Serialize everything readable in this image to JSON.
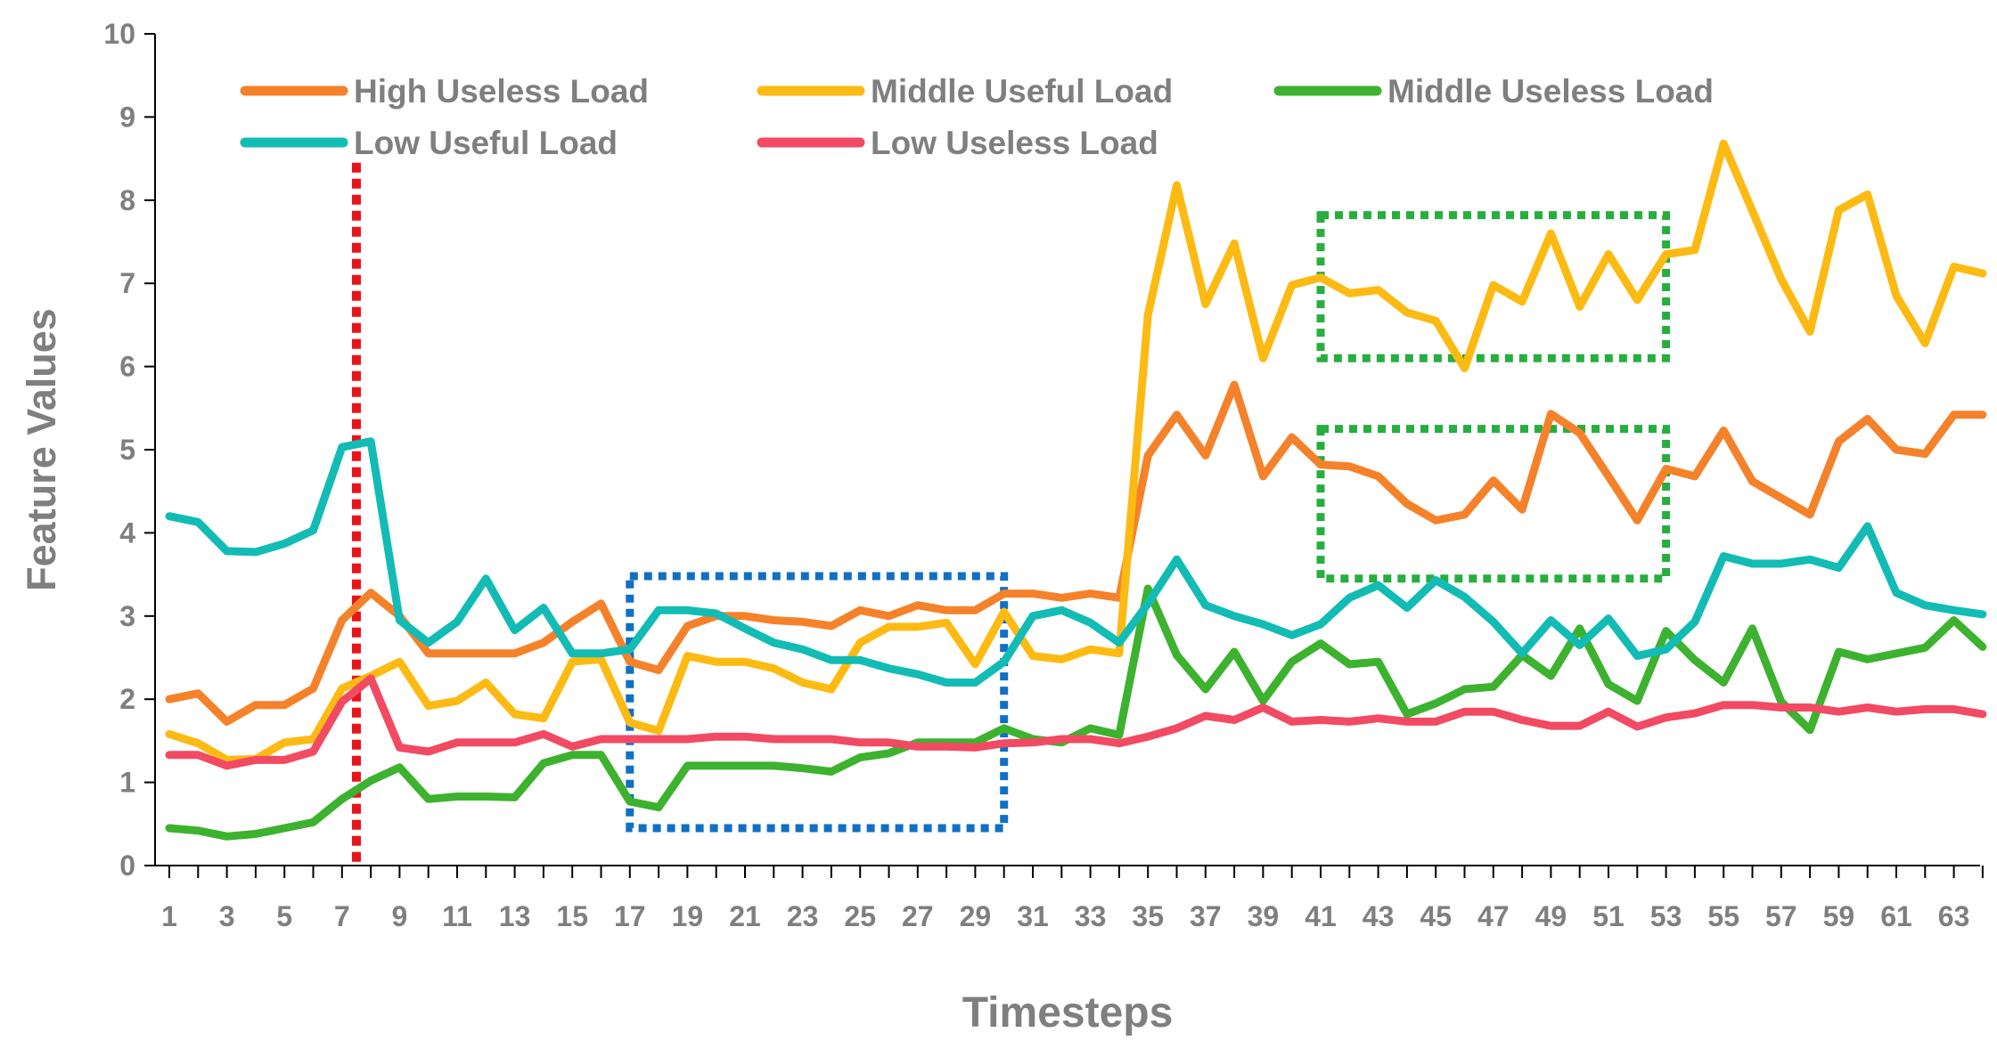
{
  "chart_data": {
    "type": "line",
    "title": "",
    "xlabel": "Timesteps",
    "ylabel": "Feature Values",
    "ylim": [
      0,
      10
    ],
    "yticks": [
      "0",
      "1",
      "2",
      "3",
      "4",
      "5",
      "6",
      "7",
      "8",
      "9",
      "10"
    ],
    "x": [
      1,
      2,
      3,
      4,
      5,
      6,
      7,
      8,
      9,
      10,
      11,
      12,
      13,
      14,
      15,
      16,
      17,
      18,
      19,
      20,
      21,
      22,
      23,
      24,
      25,
      26,
      27,
      28,
      29,
      30,
      31,
      32,
      33,
      34,
      35,
      36,
      37,
      38,
      39,
      40,
      41,
      42,
      43,
      44,
      45,
      46,
      47,
      48,
      49,
      50,
      51,
      52,
      53,
      54,
      55,
      56,
      57,
      58,
      59,
      60,
      61,
      62,
      63,
      64
    ],
    "xtick_labels": [
      "1",
      "3",
      "5",
      "7",
      "9",
      "11",
      "13",
      "15",
      "17",
      "19",
      "21",
      "23",
      "25",
      "27",
      "29",
      "31",
      "33",
      "35",
      "37",
      "39",
      "41",
      "43",
      "45",
      "47",
      "49",
      "51",
      "53",
      "55",
      "57",
      "59",
      "61",
      "63"
    ],
    "series": [
      {
        "name": "High Useless Load",
        "color": "#F5822A",
        "values": [
          2.0,
          2.07,
          1.73,
          1.93,
          1.93,
          2.13,
          2.95,
          3.28,
          3.0,
          2.55,
          2.55,
          2.55,
          2.55,
          2.68,
          2.93,
          3.15,
          2.45,
          2.35,
          2.88,
          3.0,
          3.0,
          2.95,
          2.93,
          2.88,
          3.07,
          3.0,
          3.13,
          3.07,
          3.07,
          3.27,
          3.27,
          3.22,
          3.27,
          3.22,
          4.93,
          5.42,
          4.93,
          5.78,
          4.68,
          5.15,
          4.82,
          4.8,
          4.68,
          4.35,
          4.15,
          4.22,
          4.63,
          4.28,
          5.43,
          5.2,
          4.68,
          4.15,
          4.77,
          4.68,
          5.23,
          4.62,
          4.42,
          4.22,
          5.1,
          5.37,
          5.0,
          4.95,
          5.42,
          5.42
        ]
      },
      {
        "name": "Middle Useful Load",
        "color": "#FDBA13",
        "values": [
          1.58,
          1.47,
          1.27,
          1.28,
          1.48,
          1.52,
          2.13,
          2.28,
          2.45,
          1.92,
          1.98,
          2.2,
          1.82,
          1.77,
          2.45,
          2.48,
          1.72,
          1.62,
          2.52,
          2.45,
          2.45,
          2.37,
          2.2,
          2.12,
          2.68,
          2.87,
          2.87,
          2.92,
          2.42,
          3.05,
          2.52,
          2.48,
          2.6,
          2.55,
          6.62,
          8.18,
          6.75,
          7.48,
          6.1,
          6.98,
          7.07,
          6.88,
          6.92,
          6.65,
          6.55,
          5.98,
          6.98,
          6.78,
          7.6,
          6.72,
          7.35,
          6.8,
          7.35,
          7.4,
          8.68,
          7.87,
          7.05,
          6.42,
          7.88,
          8.07,
          6.85,
          6.28,
          7.2,
          7.12
        ]
      },
      {
        "name": "Middle Useless Load",
        "color": "#3DB22F",
        "values": [
          0.45,
          0.42,
          0.35,
          0.38,
          0.45,
          0.52,
          0.8,
          1.02,
          1.18,
          0.8,
          0.83,
          0.83,
          0.82,
          1.23,
          1.33,
          1.33,
          0.77,
          0.7,
          1.2,
          1.2,
          1.2,
          1.2,
          1.17,
          1.13,
          1.3,
          1.35,
          1.48,
          1.48,
          1.48,
          1.65,
          1.52,
          1.48,
          1.65,
          1.57,
          3.33,
          2.53,
          2.12,
          2.57,
          1.98,
          2.45,
          2.67,
          2.42,
          2.45,
          1.82,
          1.95,
          2.12,
          2.15,
          2.53,
          2.28,
          2.85,
          2.18,
          1.98,
          2.82,
          2.47,
          2.2,
          2.85,
          1.97,
          1.63,
          2.57,
          2.48,
          2.55,
          2.62,
          2.95,
          2.63
        ]
      },
      {
        "name": "Low Useful Load",
        "color": "#12BCB4",
        "values": [
          4.2,
          4.13,
          3.78,
          3.77,
          3.87,
          4.03,
          5.03,
          5.1,
          2.95,
          2.68,
          2.93,
          3.45,
          2.83,
          3.1,
          2.55,
          2.55,
          2.6,
          3.07,
          3.07,
          3.03,
          2.85,
          2.68,
          2.6,
          2.47,
          2.47,
          2.37,
          2.3,
          2.2,
          2.2,
          2.45,
          3.0,
          3.07,
          2.92,
          2.68,
          3.15,
          3.68,
          3.13,
          3.0,
          2.9,
          2.77,
          2.9,
          3.22,
          3.37,
          3.1,
          3.43,
          3.23,
          2.93,
          2.55,
          2.95,
          2.65,
          2.97,
          2.52,
          2.6,
          2.93,
          3.72,
          3.63,
          3.63,
          3.68,
          3.58,
          4.08,
          3.28,
          3.13,
          3.07,
          3.02
        ]
      },
      {
        "name": "Low Useless Load",
        "color": "#F24A63",
        "values": [
          1.33,
          1.33,
          1.2,
          1.27,
          1.27,
          1.37,
          1.97,
          2.25,
          1.42,
          1.37,
          1.48,
          1.48,
          1.48,
          1.58,
          1.43,
          1.52,
          1.52,
          1.52,
          1.52,
          1.55,
          1.55,
          1.52,
          1.52,
          1.52,
          1.48,
          1.48,
          1.43,
          1.43,
          1.42,
          1.47,
          1.48,
          1.52,
          1.52,
          1.47,
          1.55,
          1.65,
          1.8,
          1.75,
          1.9,
          1.73,
          1.75,
          1.73,
          1.77,
          1.73,
          1.73,
          1.85,
          1.85,
          1.75,
          1.68,
          1.68,
          1.85,
          1.67,
          1.78,
          1.83,
          1.93,
          1.93,
          1.9,
          1.9,
          1.85,
          1.9,
          1.85,
          1.88,
          1.88,
          1.82
        ]
      }
    ],
    "annotations": [
      {
        "type": "vertical-dotted-line",
        "color": "#E8141A",
        "x": 7.5
      },
      {
        "type": "dotted-box",
        "color": "#1170C4",
        "x_range": [
          17,
          30
        ],
        "y_range": [
          0.45,
          3.48
        ]
      },
      {
        "type": "dotted-box",
        "color": "#27AE3F",
        "x_range": [
          41,
          53
        ],
        "y_range": [
          6.1,
          7.82
        ]
      },
      {
        "type": "dotted-box",
        "color": "#27AE3F",
        "x_range": [
          41,
          53
        ],
        "y_range": [
          3.45,
          5.25
        ]
      }
    ],
    "grid": false,
    "legend_position": "top-left, inside plot"
  }
}
